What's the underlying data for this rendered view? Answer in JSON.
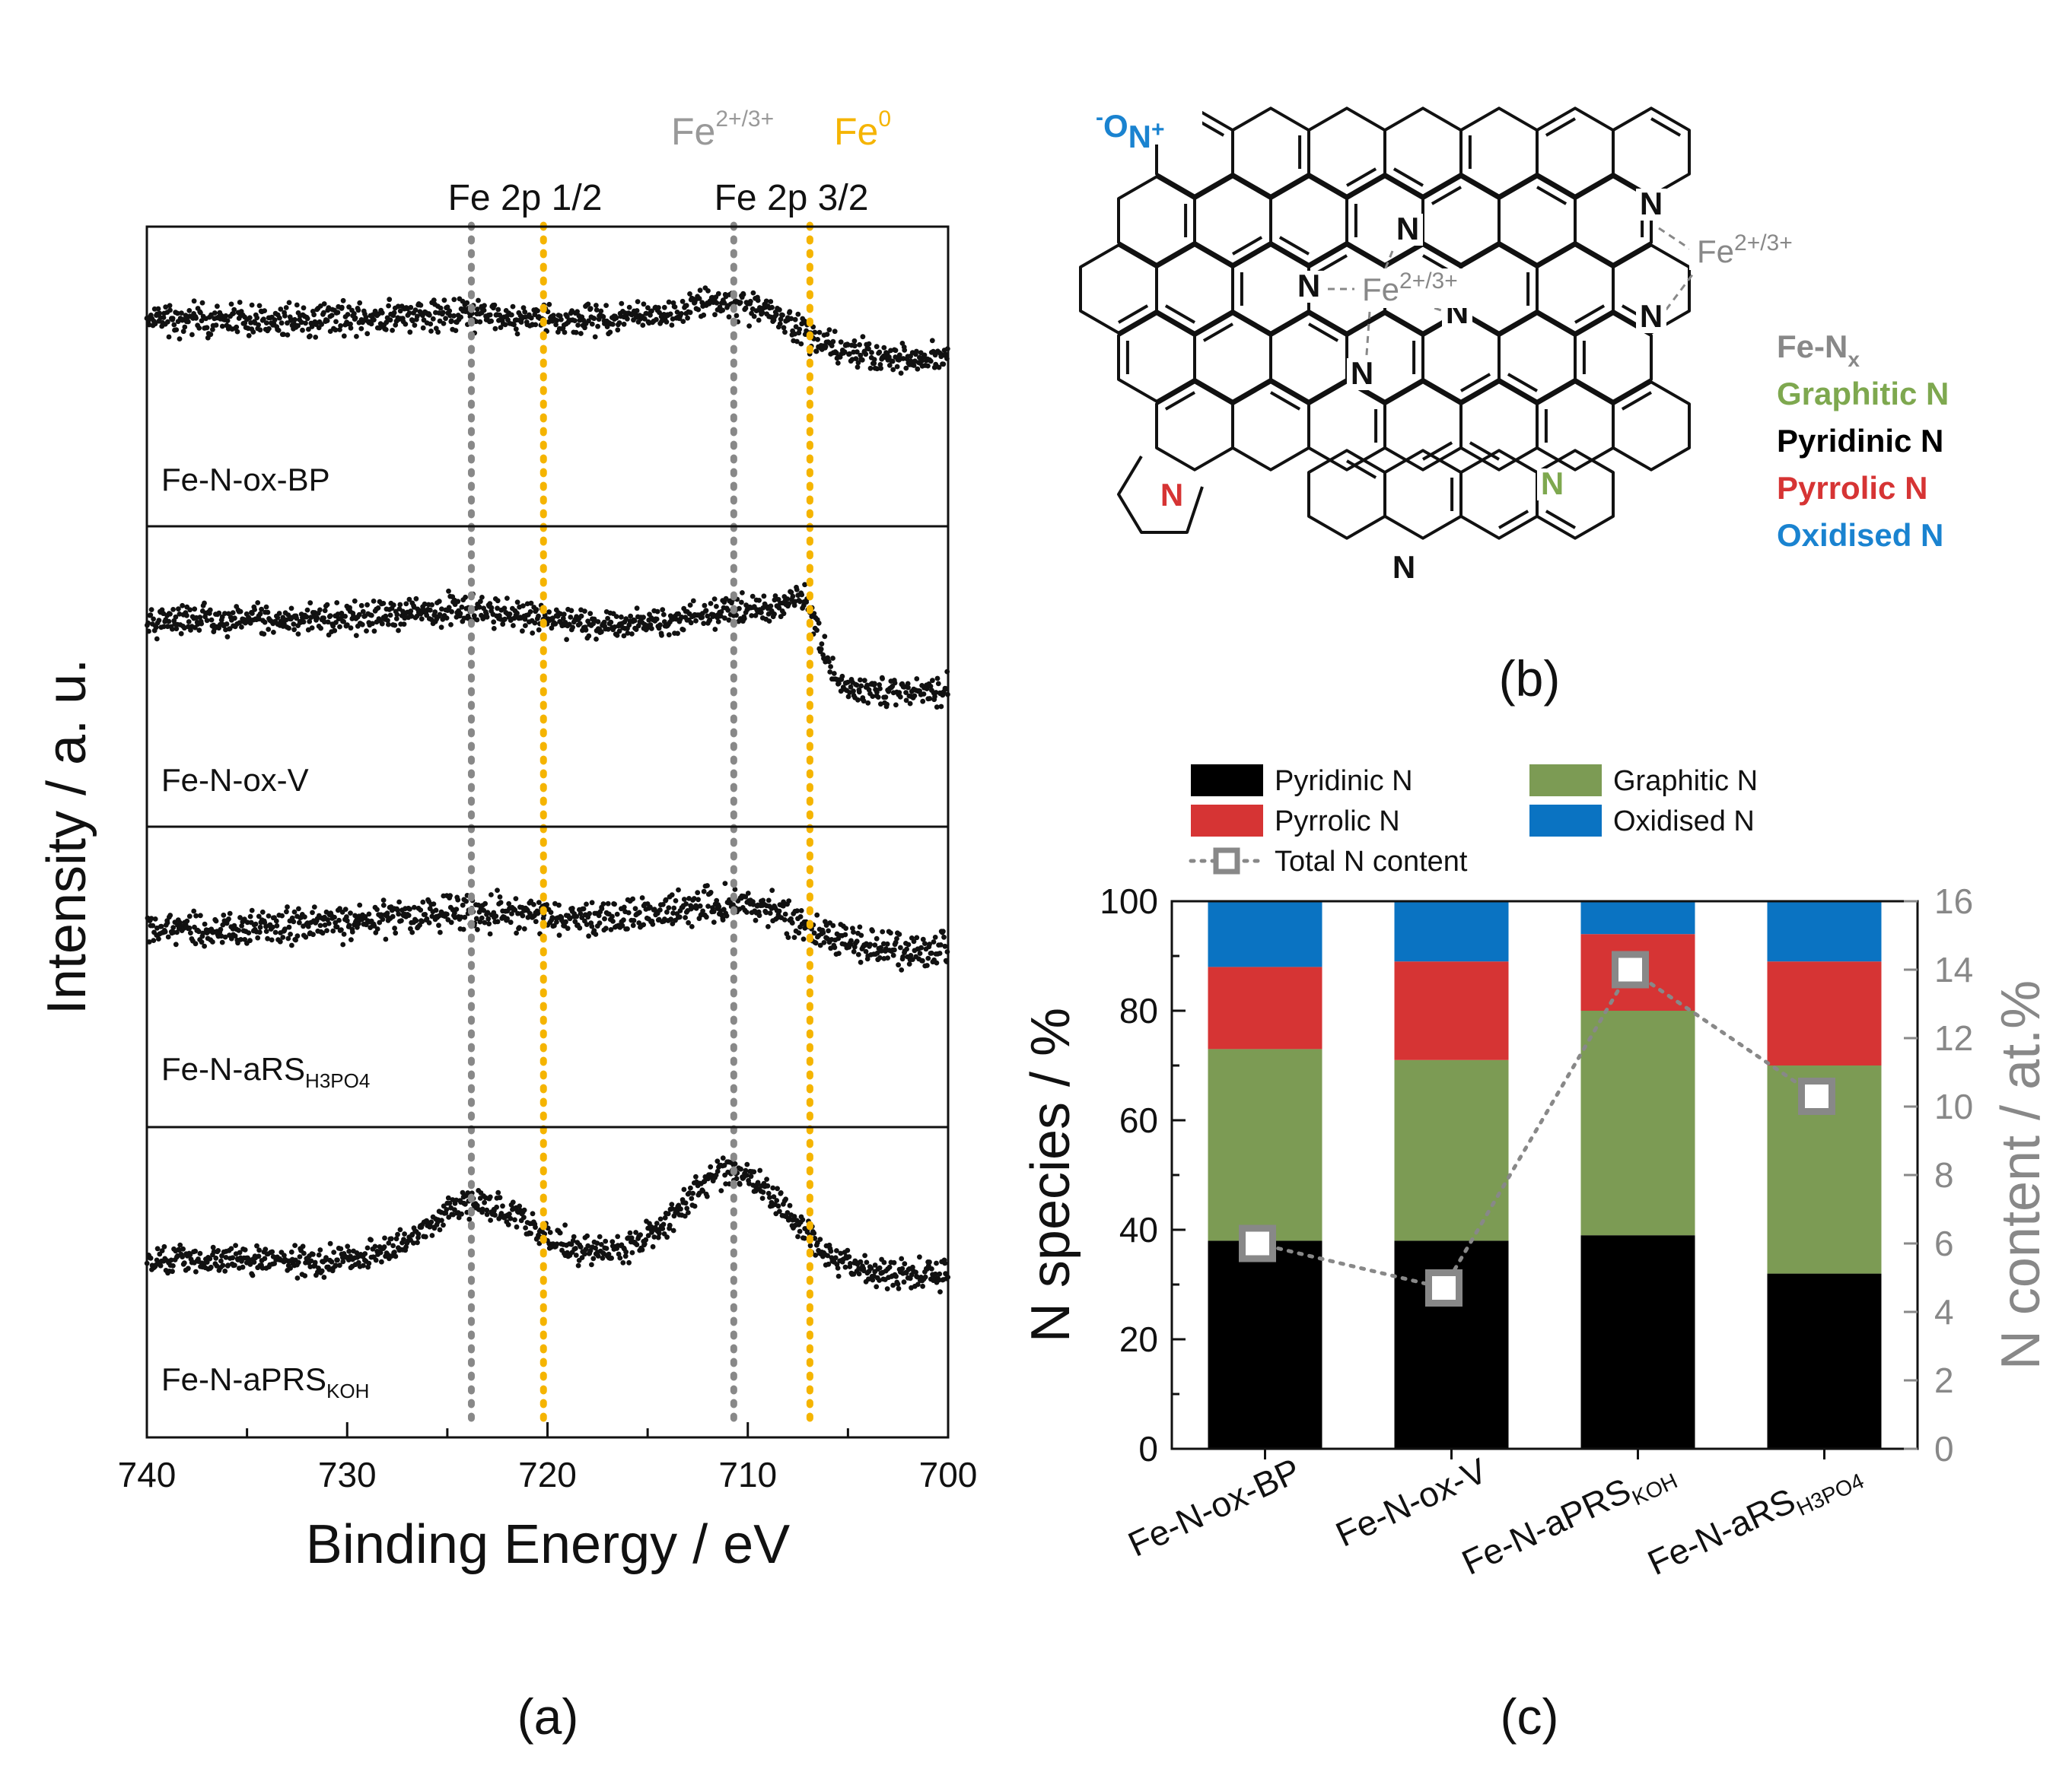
{
  "panel_labels": {
    "a": "(a)",
    "b": "(b)",
    "c": "(c)"
  },
  "colors": {
    "pyridinic": "#000000",
    "pyrrolic": "#d63434",
    "graphitic": "#7c9b54",
    "oxidised": "#0a73c2",
    "fe_oxide_line": "#888888",
    "fe0_line": "#f5b400",
    "total_n": "#888888"
  },
  "panel_b": {
    "legend": [
      {
        "text": "Fe-N",
        "sub": "x",
        "color": "#888888"
      },
      {
        "text": "Graphitic N",
        "color": "#7ea84f"
      },
      {
        "text": "Pyridinic N",
        "color": "#000000"
      },
      {
        "text": "Pyrrolic N",
        "color": "#d63434"
      },
      {
        "text": "Oxidised N",
        "color": "#1a83d0"
      }
    ],
    "atoms": {
      "oxide_o": "O",
      "oxide_minus": "-",
      "oxide_n": "N",
      "oxide_plus": "+",
      "n": "N",
      "fe": "Fe",
      "fe_sup": "2+/3+"
    }
  },
  "chart_data": [
    {
      "type": "scatter",
      "panel": "a",
      "xlabel": "Binding Energy / eV",
      "ylabel": "Intensity / a. u.",
      "xlim": [
        740,
        700
      ],
      "xticks": [
        740,
        730,
        720,
        710,
        700
      ],
      "reference_lines": [
        {
          "x": 723.8,
          "label": "Fe 2p 1/2",
          "species": "Fe2+/3+"
        },
        {
          "x": 720.2,
          "species": "Fe0"
        },
        {
          "x": 710.7,
          "label": "Fe 2p 3/2",
          "species": "Fe2+/3+"
        },
        {
          "x": 706.9,
          "species": "Fe0"
        }
      ],
      "peak_labels": [
        "Fe 2p 1/2",
        "Fe 2p 3/2"
      ],
      "species_labels": {
        "fe_oxide": "Fe",
        "fe_oxide_sup": "2+/3+",
        "fe0": "Fe",
        "fe0_sup": "0"
      },
      "series": [
        {
          "name": "Fe-N-ox-BP",
          "sub": ""
        },
        {
          "name": "Fe-N-ox-V",
          "sub": ""
        },
        {
          "name": "Fe-N-aRS",
          "sub": "H3PO4"
        },
        {
          "name": "Fe-N-aPRS",
          "sub": "KOH"
        }
      ]
    },
    {
      "type": "bar",
      "panel": "c",
      "stacked": true,
      "categories": [
        {
          "name": "Fe-N-ox-BP",
          "sub": ""
        },
        {
          "name": "Fe-N-ox-V",
          "sub": ""
        },
        {
          "name": "Fe-N-aPRS",
          "sub": "KOH"
        },
        {
          "name": "Fe-N-aRS",
          "sub": "H3PO4"
        }
      ],
      "series": [
        {
          "name": "Pyridinic N",
          "values": [
            38,
            38,
            39,
            32
          ]
        },
        {
          "name": "Graphitic N",
          "values": [
            35,
            33,
            41,
            38
          ]
        },
        {
          "name": "Pyrrolic N",
          "values": [
            15,
            18,
            14,
            19
          ]
        },
        {
          "name": "Oxidised N",
          "values": [
            12,
            11,
            6,
            11
          ]
        }
      ],
      "line_series": {
        "name": "Total N content",
        "axis": "right",
        "values": [
          6.0,
          4.7,
          14.0,
          10.3
        ]
      },
      "ylabel": "N species / %",
      "ylim": [
        0,
        100
      ],
      "yticks": [
        0,
        20,
        40,
        60,
        80,
        100
      ],
      "y2label": "N content / at.%",
      "y2lim": [
        0,
        16
      ],
      "y2ticks": [
        0,
        2,
        4,
        6,
        8,
        10,
        12,
        14,
        16
      ],
      "legend": [
        {
          "name": "Pyridinic N"
        },
        {
          "name": "Graphitic N"
        },
        {
          "name": "Pyrrolic N"
        },
        {
          "name": "Oxidised N"
        },
        {
          "name": "Total N content"
        }
      ],
      "legend_position": "top"
    }
  ]
}
